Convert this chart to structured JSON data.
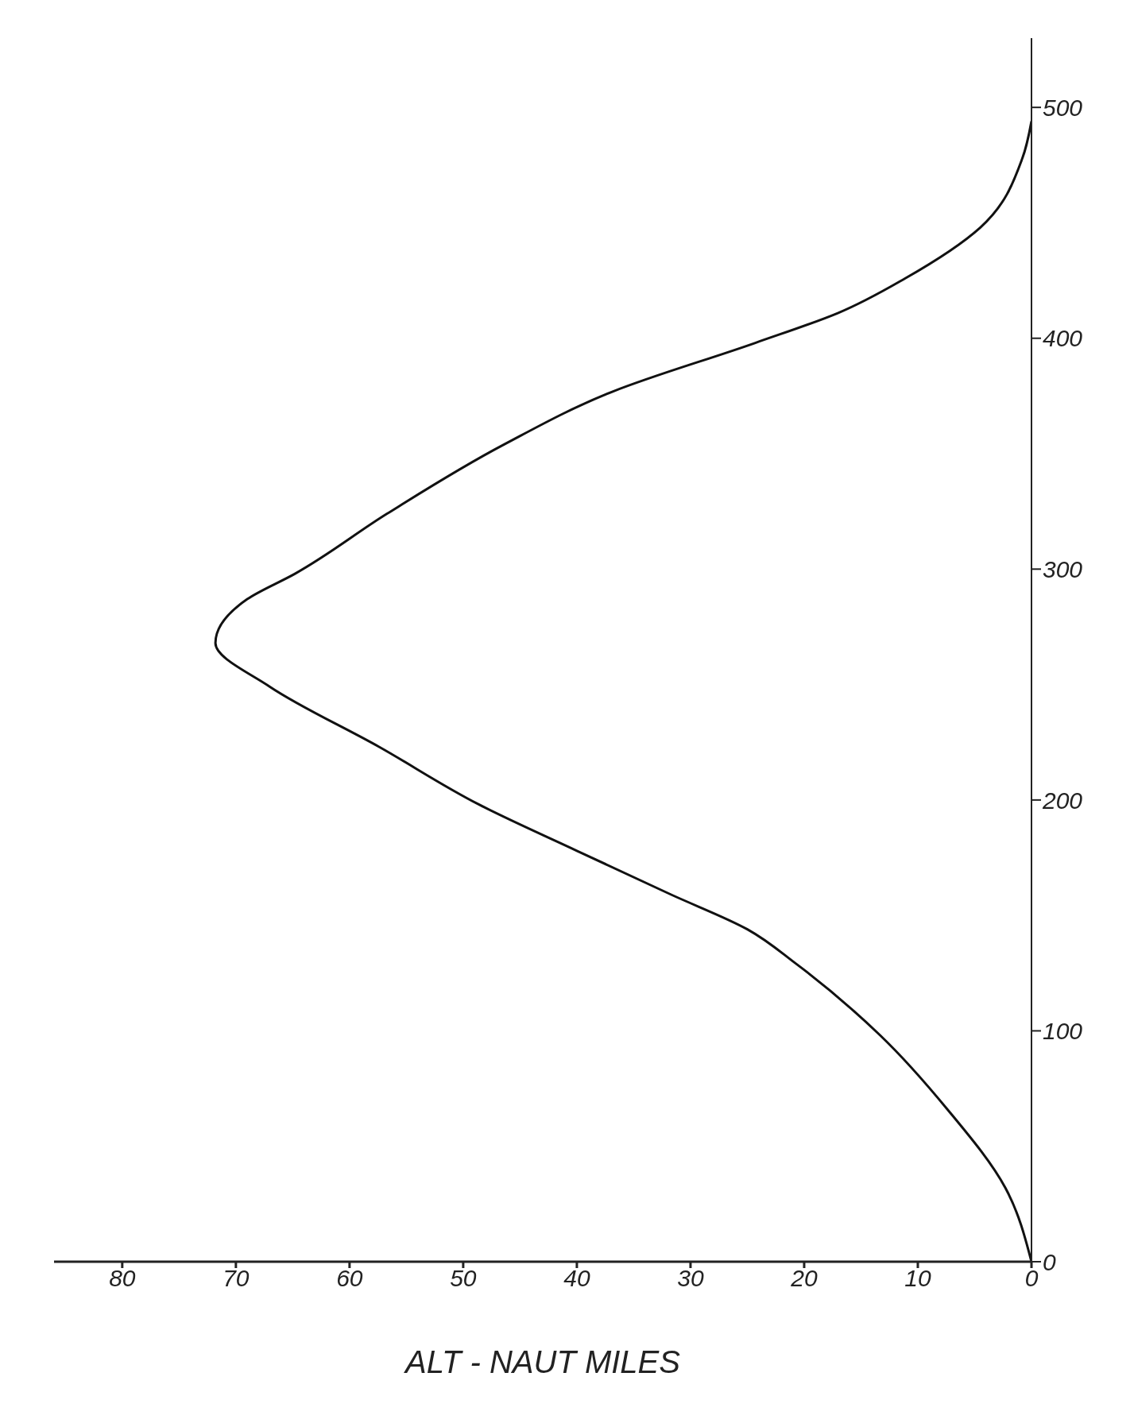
{
  "chart_data": {
    "type": "line",
    "xlabel": "ALT - NAUT MILES",
    "series": [
      {
        "color": "#111111",
        "x": [
          0,
          2.3,
          7.4,
          13.3,
          20.7,
          25,
          31.7,
          40,
          48.6,
          57.4,
          67,
          71.8,
          69,
          64.8,
          56.7,
          46.4,
          36.8,
          24.3,
          17,
          11.1,
          4.5,
          0.8,
          0
        ],
        "values": [
          0,
          32,
          66,
          98,
          129,
          144,
          159,
          178,
          198,
          223,
          249,
          268,
          287,
          298,
          324,
          354,
          377,
          398,
          411,
          426,
          448,
          478,
          494
        ]
      }
    ],
    "xlim": [
      86,
      0
    ],
    "xticks": [
      80,
      70,
      60,
      50,
      40,
      30,
      20,
      10,
      0
    ],
    "ylim": [
      0,
      530
    ],
    "yticks": [
      0,
      100,
      200,
      300,
      400,
      500
    ],
    "grid": false,
    "legend": false,
    "marker": "none",
    "line_style": "solid"
  }
}
